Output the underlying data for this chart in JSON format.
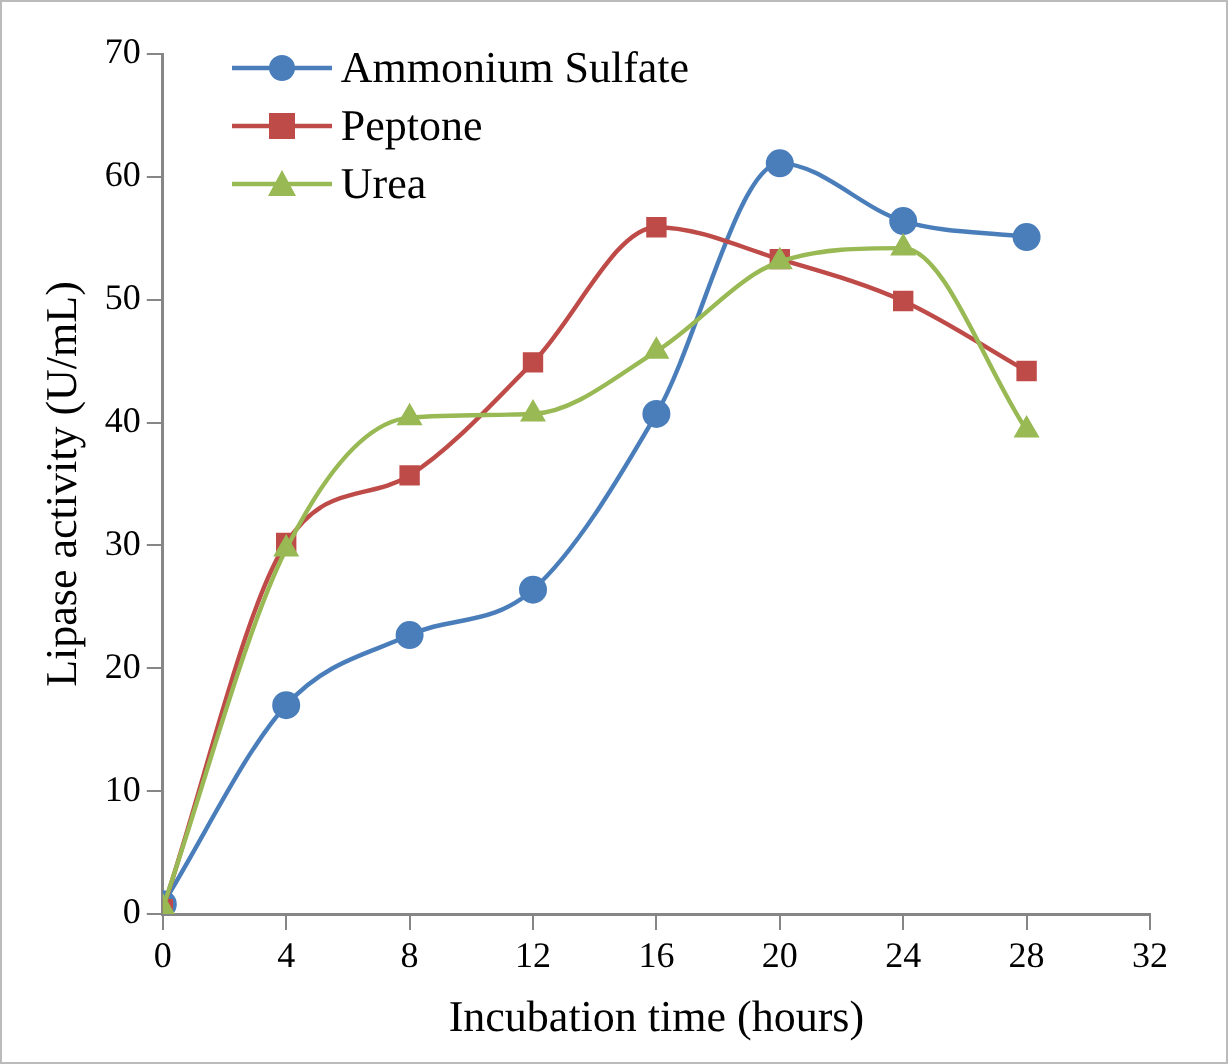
{
  "chart_data": {
    "type": "line",
    "xlabel": "Incubation time (hours)",
    "ylabel": "Lipase activity (U/mL)",
    "x": [
      0,
      4,
      8,
      12,
      16,
      20,
      24,
      28
    ],
    "series": [
      {
        "name": "Ammonium Sulfate",
        "color": "#4a7ebb",
        "marker": "circle",
        "values": [
          0.8,
          17.0,
          22.7,
          26.4,
          40.7,
          61.1,
          56.4,
          55.1
        ]
      },
      {
        "name": "Peptone",
        "color": "#be4b48",
        "marker": "square",
        "values": [
          0.4,
          30.2,
          35.7,
          44.9,
          55.9,
          53.3,
          49.9,
          44.2
        ]
      },
      {
        "name": "Urea",
        "color": "#98b954",
        "marker": "triangle",
        "values": [
          0.5,
          29.7,
          40.4,
          40.7,
          45.8,
          53.1,
          54.2,
          39.4
        ]
      }
    ],
    "xlim": [
      0,
      32
    ],
    "xticks": [
      0,
      4,
      8,
      12,
      16,
      20,
      24,
      28,
      32
    ],
    "ylim": [
      0,
      70
    ],
    "yticks": [
      0,
      10,
      20,
      30,
      40,
      50,
      60,
      70
    ],
    "grid": false,
    "legend": "top left",
    "line_style": "solid"
  }
}
